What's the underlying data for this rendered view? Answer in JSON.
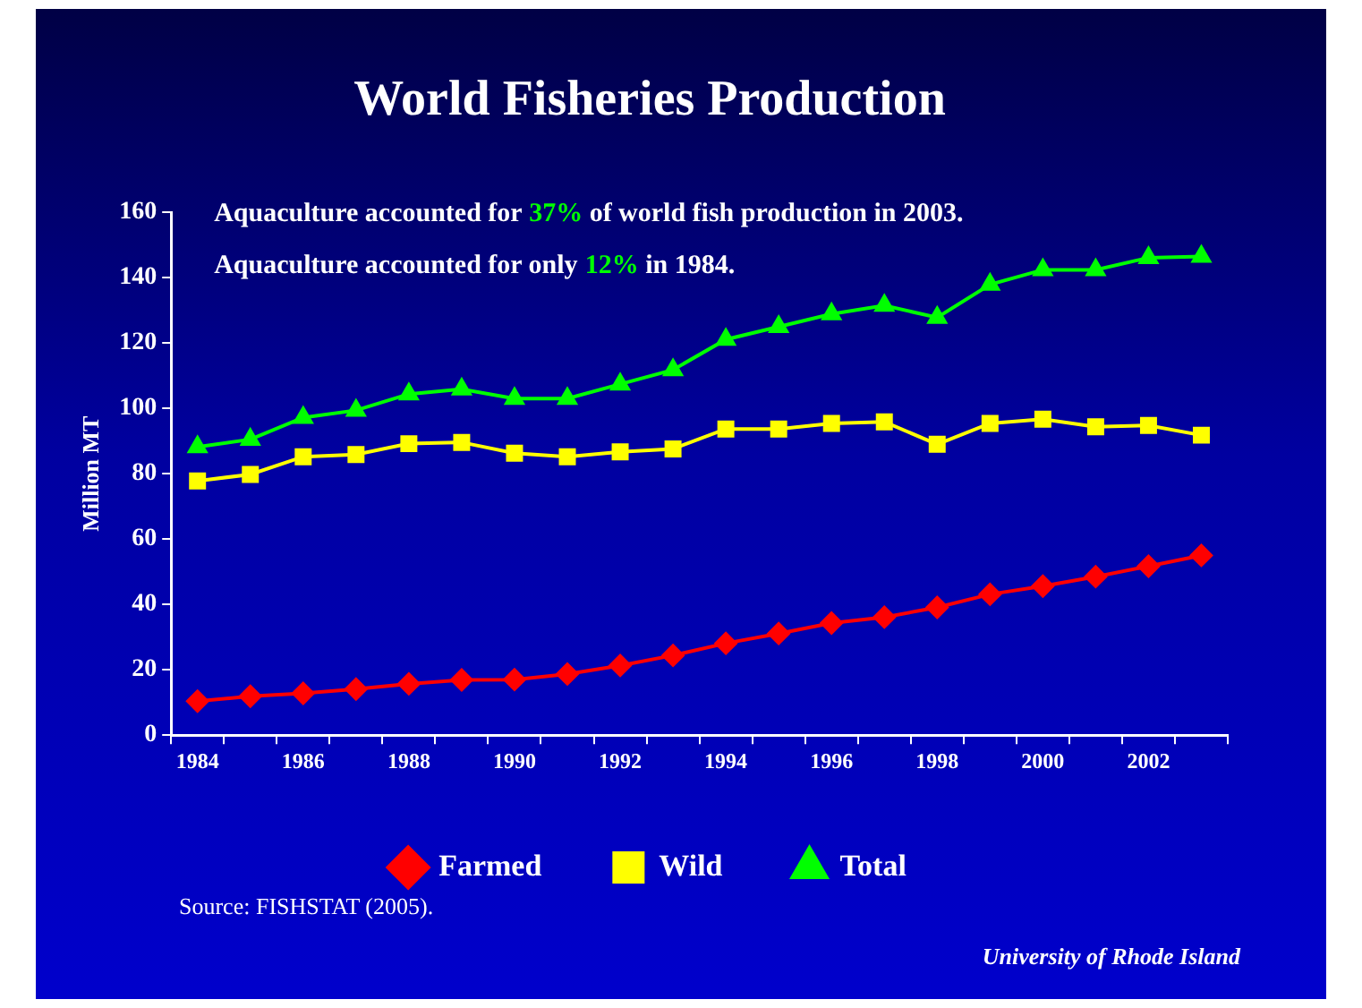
{
  "chart_data": {
    "type": "line",
    "title": "World Fisheries Production",
    "ylabel": "Million MT",
    "categories": [
      "1984",
      null,
      "1986",
      null,
      "1988",
      null,
      "1990",
      null,
      "1992",
      null,
      "1994",
      null,
      "1996",
      null,
      "1998",
      null,
      "2000",
      null,
      "2002",
      null
    ],
    "series": [
      {
        "name": "Farmed",
        "color": "#ff0000",
        "marker": "diamond",
        "values": [
          10.4,
          11.9,
          12.8,
          14.1,
          15.7,
          16.9,
          17,
          18.7,
          21.3,
          24.4,
          28.1,
          31.1,
          34.3,
          36.1,
          39.1,
          43.1,
          45.6,
          48.5,
          51.7,
          55
        ]
      },
      {
        "name": "Wild",
        "color": "#ffff00",
        "marker": "square",
        "values": [
          77.8,
          79.8,
          85.2,
          85.9,
          89.2,
          89.6,
          86.3,
          85.2,
          86.7,
          87.6,
          93.7,
          93.7,
          95.4,
          95.9,
          89,
          95.4,
          96.7,
          94.4,
          94.8,
          91.8
        ]
      },
      {
        "name": "Total",
        "color": "#00ff00",
        "marker": "triangle",
        "values": [
          88.2,
          90.5,
          97.2,
          99.4,
          104.4,
          105.9,
          103,
          103,
          107.4,
          111.8,
          121.1,
          125,
          128.9,
          131.5,
          127.8,
          137.9,
          142.4,
          142.4,
          146.1,
          146.5
        ]
      }
    ],
    "ylim": [
      0,
      160
    ],
    "yticks": [
      0,
      20,
      40,
      60,
      80,
      100,
      120,
      140,
      160
    ],
    "grid": false,
    "legend": "bottom",
    "annotations": [
      "Aquaculture accounted for 37% of world fish production in 2003.",
      "Aquaculture accounted for only 12% in 1984.",
      "Source: FISHSTAT (2005).",
      "University of Rhode Island"
    ]
  }
}
